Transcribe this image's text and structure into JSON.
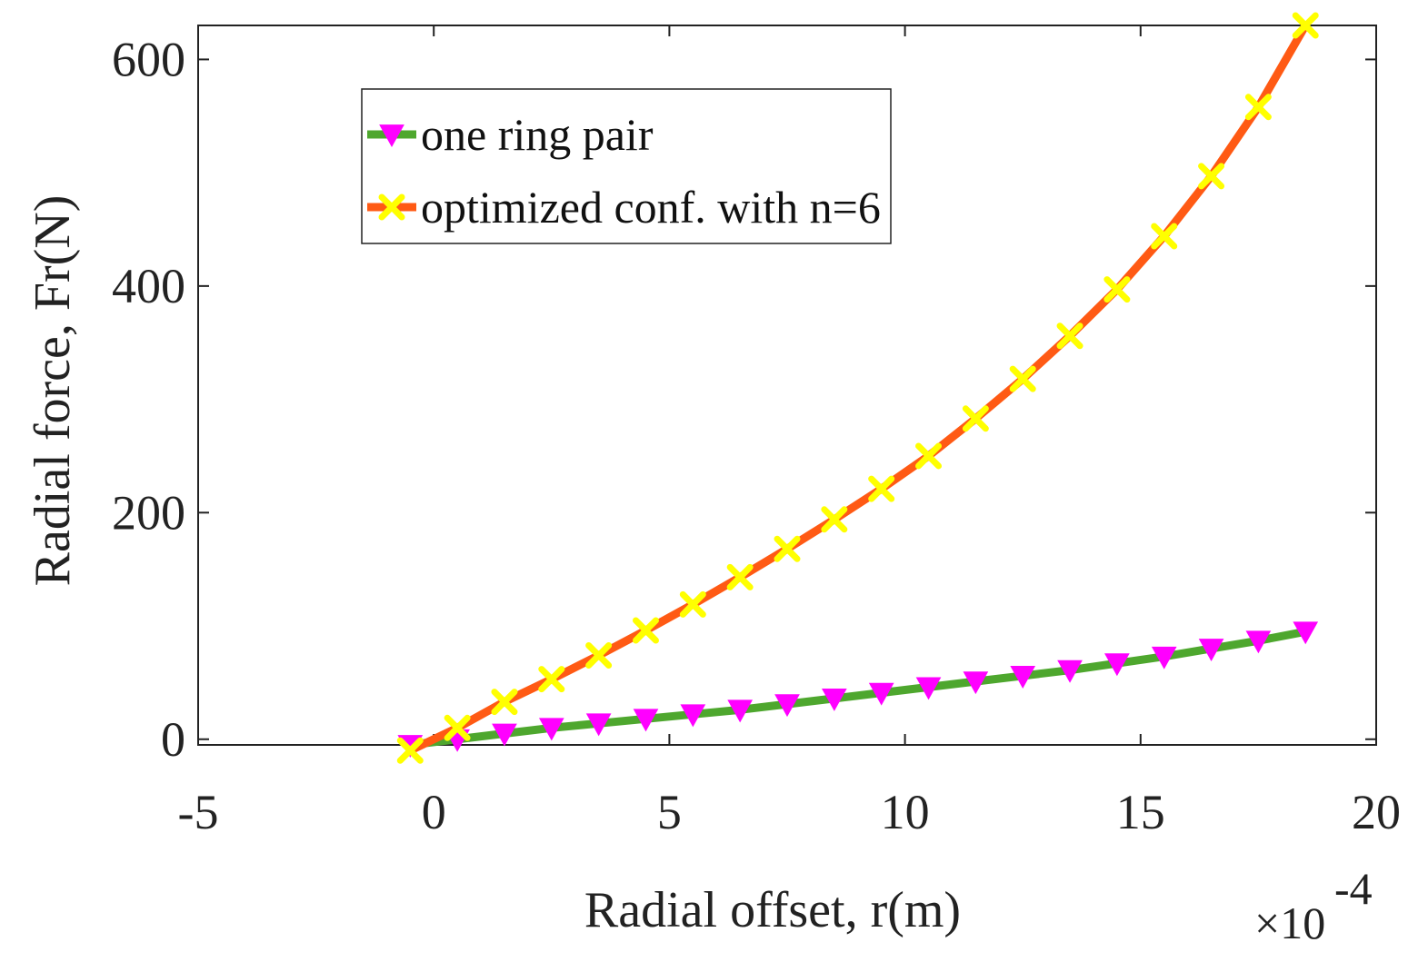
{
  "chart_data": {
    "type": "line",
    "xlabel": "Radial offset, r(m)",
    "ylabel": "Radial force, Fr(N)",
    "x_multiplier": "×10",
    "x_exponent": "-4",
    "xlim": [
      -5,
      20
    ],
    "ylim": [
      -5,
      630
    ],
    "xticks": [
      -5,
      0,
      5,
      10,
      15,
      20
    ],
    "yticks": [
      0,
      200,
      400,
      600
    ],
    "legend_position": "top-left",
    "series": [
      {
        "name": "one ring pair",
        "line_color": "#4ea72e",
        "marker": "triangle-down",
        "marker_color": "#ff00ff",
        "x": [
          -0.5,
          0.5,
          1.5,
          2.5,
          3.5,
          4.5,
          5.5,
          6.5,
          7.5,
          8.5,
          9.5,
          10.5,
          11.5,
          12.5,
          13.5,
          14.5,
          15.5,
          16.5,
          17.5,
          18.5
        ],
        "y": [
          -5,
          0,
          5,
          10,
          14,
          18,
          22,
          26,
          31,
          36,
          41,
          46,
          51,
          56,
          61,
          67,
          73,
          80,
          87,
          95
        ]
      },
      {
        "name": "optimized conf. with n=6",
        "line_color": "#ff5a14",
        "marker": "x",
        "marker_color": "#ffff00",
        "x": [
          -0.5,
          0.5,
          1.5,
          2.5,
          3.5,
          4.5,
          5.5,
          6.5,
          7.5,
          8.5,
          9.5,
          10.5,
          11.5,
          12.5,
          13.5,
          14.5,
          15.5,
          16.5,
          17.5,
          18.5
        ],
        "y": [
          -10,
          10,
          33,
          53,
          74,
          96,
          119,
          143,
          168,
          194,
          221,
          250,
          283,
          318,
          356,
          397,
          444,
          497,
          558,
          630
        ]
      }
    ]
  }
}
